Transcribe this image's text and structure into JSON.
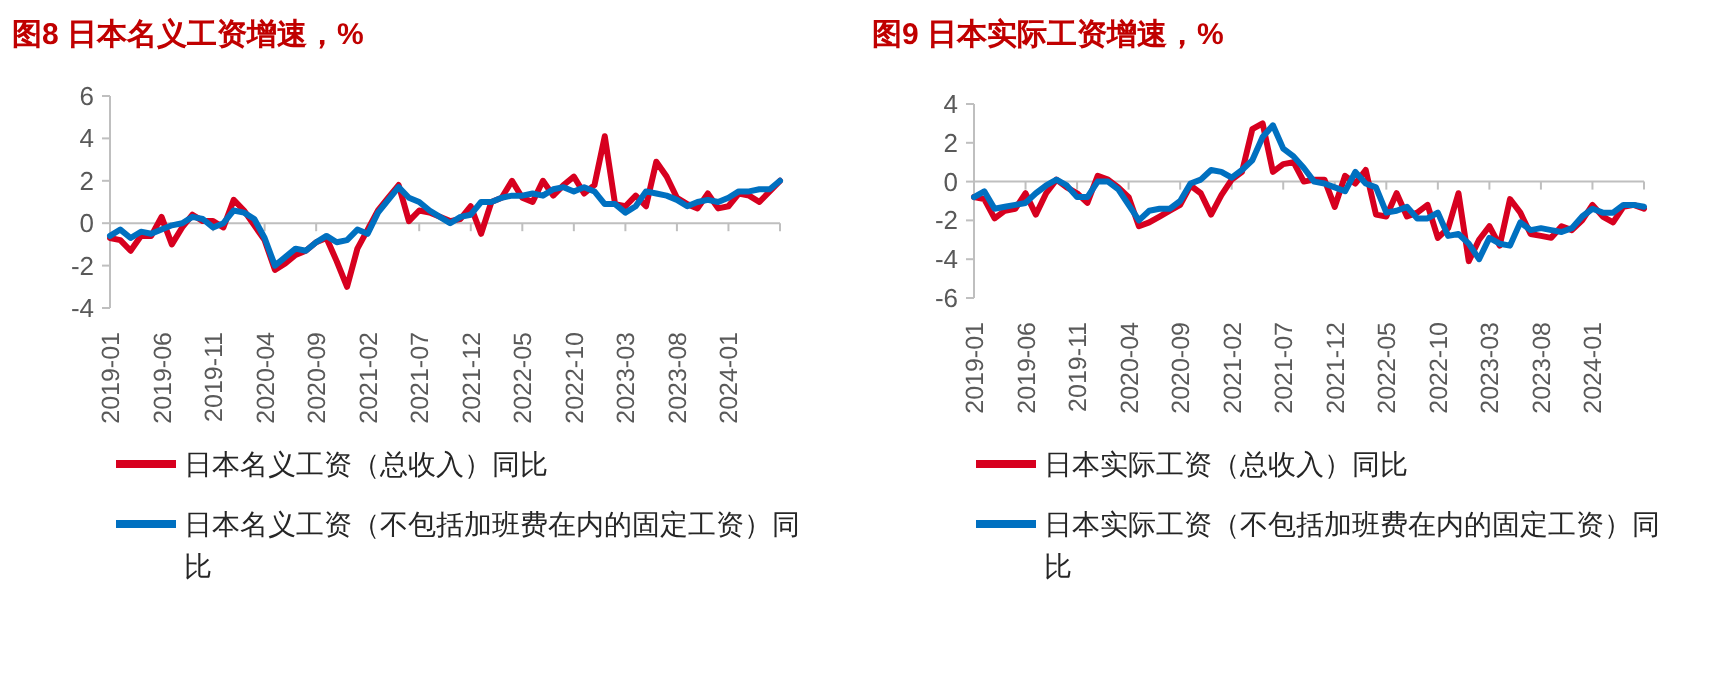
{
  "chart_data": [
    {
      "type": "line",
      "title": "图8  日本名义工资增速，%",
      "legend": "bottom",
      "categories": [
        "2019-01",
        null,
        null,
        null,
        null,
        "2019-06",
        null,
        null,
        null,
        null,
        "2019-11",
        null,
        null,
        null,
        null,
        "2020-04",
        null,
        null,
        null,
        null,
        "2020-09",
        null,
        null,
        null,
        null,
        "2021-02",
        null,
        null,
        null,
        null,
        "2021-07",
        null,
        null,
        null,
        null,
        "2021-12",
        null,
        null,
        null,
        null,
        "2022-05",
        null,
        null,
        null,
        null,
        "2022-10",
        null,
        null,
        null,
        null,
        "2023-03",
        null,
        null,
        null,
        null,
        "2023-08",
        null,
        null,
        null,
        null,
        "2024-01",
        null,
        null,
        null,
        null,
        null
      ],
      "ylim": [
        -4,
        6
      ],
      "yticks": [
        -4,
        -2,
        0,
        2,
        4,
        6
      ],
      "series": [
        {
          "name": "日本名义工资（总收入）同比",
          "color": "#d7001f",
          "values": [
            -0.7,
            -0.8,
            -1.3,
            -0.6,
            -0.6,
            0.3,
            -1.0,
            -0.2,
            0.4,
            0.1,
            0.1,
            -0.2,
            1.1,
            0.6,
            -0.1,
            -0.8,
            -2.2,
            -1.9,
            -1.5,
            -1.3,
            -0.9,
            -0.7,
            -1.8,
            -3.0,
            -1.2,
            -0.3,
            0.6,
            1.2,
            1.8,
            0.1,
            0.6,
            0.5,
            0.3,
            0.1,
            0.2,
            0.8,
            -0.5,
            1.0,
            1.2,
            2.0,
            1.2,
            1.0,
            2.0,
            1.3,
            1.8,
            2.2,
            1.4,
            1.8,
            4.1,
            0.9,
            0.8,
            1.3,
            0.8,
            2.9,
            2.2,
            1.2,
            0.9,
            0.7,
            1.4,
            0.7,
            0.8,
            1.4,
            1.3,
            1.0,
            1.5,
            2.0
          ]
        },
        {
          "name": "日本名义工资（不包括加班费在内的固定工资）同比",
          "color": "#0070c0",
          "values": [
            -0.6,
            -0.3,
            -0.7,
            -0.4,
            -0.5,
            -0.3,
            -0.1,
            0.0,
            0.3,
            0.2,
            -0.2,
            0.0,
            0.6,
            0.5,
            0.2,
            -0.7,
            -2.0,
            -1.6,
            -1.2,
            -1.3,
            -0.9,
            -0.6,
            -0.9,
            -0.8,
            -0.3,
            -0.5,
            0.5,
            1.1,
            1.7,
            1.2,
            1.0,
            0.6,
            0.3,
            0.0,
            0.3,
            0.4,
            1.0,
            1.0,
            1.2,
            1.3,
            1.3,
            1.4,
            1.3,
            1.6,
            1.7,
            1.5,
            1.7,
            1.5,
            0.9,
            0.9,
            0.5,
            0.8,
            1.5,
            1.4,
            1.3,
            1.1,
            0.8,
            1.0,
            1.1,
            1.0,
            1.2,
            1.5,
            1.5,
            1.6,
            1.6,
            2.0
          ]
        }
      ]
    },
    {
      "type": "line",
      "title": "图9  日本实际工资增速，%",
      "legend": "bottom",
      "categories": [
        "2019-01",
        null,
        null,
        null,
        null,
        "2019-06",
        null,
        null,
        null,
        null,
        "2019-11",
        null,
        null,
        null,
        null,
        "2020-04",
        null,
        null,
        null,
        null,
        "2020-09",
        null,
        null,
        null,
        null,
        "2021-02",
        null,
        null,
        null,
        null,
        "2021-07",
        null,
        null,
        null,
        null,
        "2021-12",
        null,
        null,
        null,
        null,
        "2022-05",
        null,
        null,
        null,
        null,
        "2022-10",
        null,
        null,
        null,
        null,
        "2023-03",
        null,
        null,
        null,
        null,
        "2023-08",
        null,
        null,
        null,
        null,
        "2024-01",
        null,
        null,
        null,
        null,
        null
      ],
      "ylim": [
        -6,
        4
      ],
      "yticks": [
        -6,
        -4,
        -2,
        0,
        2,
        4
      ],
      "series": [
        {
          "name": "日本实际工资（总收入）同比",
          "color": "#d7001f",
          "values": [
            -0.8,
            -0.9,
            -1.9,
            -1.5,
            -1.4,
            -0.6,
            -1.7,
            -0.6,
            0.1,
            -0.3,
            -0.6,
            -1.1,
            0.3,
            0.1,
            -0.3,
            -0.8,
            -2.3,
            -2.1,
            -1.8,
            -1.5,
            -1.2,
            -0.2,
            -0.6,
            -1.7,
            -0.7,
            0.1,
            0.5,
            2.7,
            3.0,
            0.5,
            0.9,
            1.0,
            0.0,
            0.1,
            0.1,
            -1.3,
            0.3,
            -0.1,
            0.6,
            -1.7,
            -1.8,
            -0.6,
            -1.8,
            -1.6,
            -1.2,
            -2.9,
            -2.4,
            -0.6,
            -4.1,
            -3.0,
            -2.3,
            -3.3,
            -0.9,
            -1.6,
            -2.7,
            -2.8,
            -2.9,
            -2.3,
            -2.5,
            -2.0,
            -1.2,
            -1.8,
            -2.1,
            -1.3,
            -1.2,
            -1.4
          ]
        },
        {
          "name": "日本实际工资（不包括加班费在内的固定工资）同比",
          "color": "#0070c0",
          "values": [
            -0.8,
            -0.5,
            -1.4,
            -1.3,
            -1.2,
            -1.1,
            -0.6,
            -0.2,
            0.1,
            -0.2,
            -0.8,
            -0.8,
            0.0,
            0.0,
            -0.4,
            -1.2,
            -2.0,
            -1.5,
            -1.4,
            -1.4,
            -1.0,
            -0.1,
            0.1,
            0.6,
            0.5,
            0.2,
            0.6,
            1.1,
            2.3,
            2.9,
            1.7,
            1.3,
            0.7,
            0.0,
            -0.1,
            -0.3,
            -0.5,
            0.5,
            -0.1,
            -0.3,
            -1.6,
            -1.5,
            -1.3,
            -1.9,
            -1.9,
            -1.6,
            -2.8,
            -2.7,
            -3.2,
            -4.0,
            -2.9,
            -3.2,
            -3.3,
            -2.1,
            -2.5,
            -2.4,
            -2.5,
            -2.6,
            -2.4,
            -1.8,
            -1.4,
            -1.6,
            -1.6,
            -1.2,
            -1.2,
            -1.3
          ]
        }
      ]
    }
  ]
}
